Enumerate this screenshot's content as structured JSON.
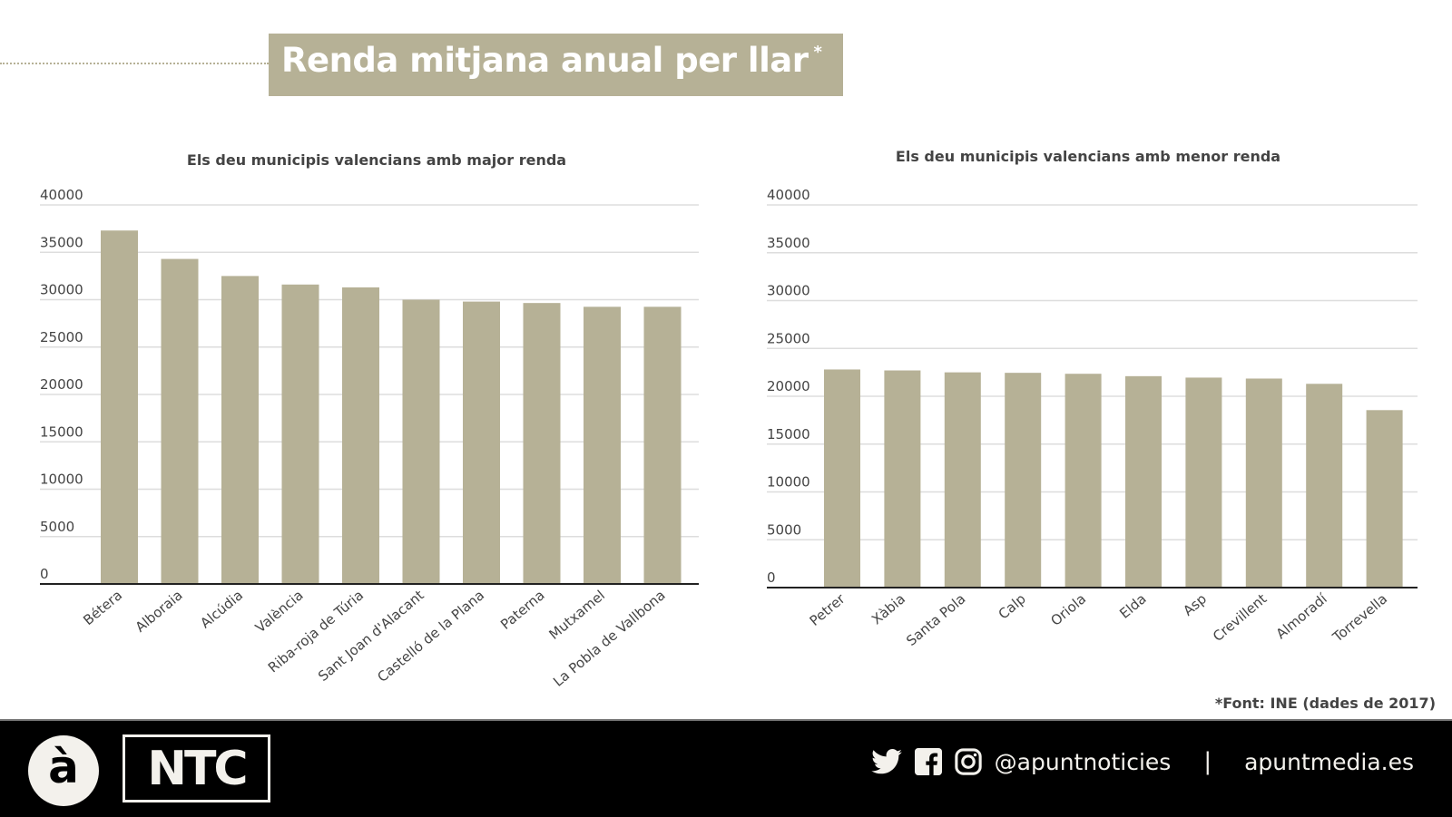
{
  "header": {
    "title": "Renda mitjana anual per llar",
    "title_asterisk": "*"
  },
  "colors": {
    "bar": "#b6b196",
    "title_bg": "#b6b196",
    "grid": "#dddddd",
    "axis": "#222222",
    "text": "#444444",
    "footer_bg": "#000000"
  },
  "chart_data": [
    {
      "type": "bar",
      "title": "Els deu municipis valencians amb major renda",
      "xlabel": "",
      "ylabel": "",
      "ylim": [
        0,
        40000
      ],
      "yticks": [
        "0",
        "5000",
        "10000",
        "15000",
        "20000",
        "25000",
        "30000",
        "35000",
        "40000"
      ],
      "grid": true,
      "categories": [
        "Bétera",
        "Alboraia",
        "Alcúdia",
        "València",
        "Riba-roja de Túria",
        "Sant Joan d'Alacant",
        "Castelló de la Plana",
        "Paterna",
        "Mutxamel",
        "La Pobla de Vallbona"
      ],
      "values": [
        37300,
        34300,
        32500,
        31600,
        31300,
        30000,
        29800,
        29650,
        29250,
        29250
      ]
    },
    {
      "type": "bar",
      "title": "Els deu municipis valencians amb menor renda",
      "xlabel": "",
      "ylabel": "",
      "ylim": [
        0,
        40000
      ],
      "yticks": [
        "0",
        "5000",
        "10000",
        "15000",
        "20000",
        "25000",
        "30000",
        "35000",
        "40000"
      ],
      "grid": true,
      "categories": [
        "Petrer",
        "Xàbia",
        "Santa Pola",
        "Calp",
        "Oriola",
        "Elda",
        "Asp",
        "Crevillent",
        "Almoradí",
        "Torrevella"
      ],
      "values": [
        22800,
        22700,
        22500,
        22450,
        22350,
        22100,
        21950,
        21850,
        21300,
        18550
      ]
    }
  ],
  "source": "*Font: INE (dades de 2017)",
  "footer": {
    "logo_letter": "à",
    "brand": "NTC",
    "icons": [
      "twitter-icon",
      "facebook-icon",
      "instagram-icon"
    ],
    "handle": "@apuntnoticies",
    "separator": "|",
    "website": "apuntmedia.es"
  }
}
